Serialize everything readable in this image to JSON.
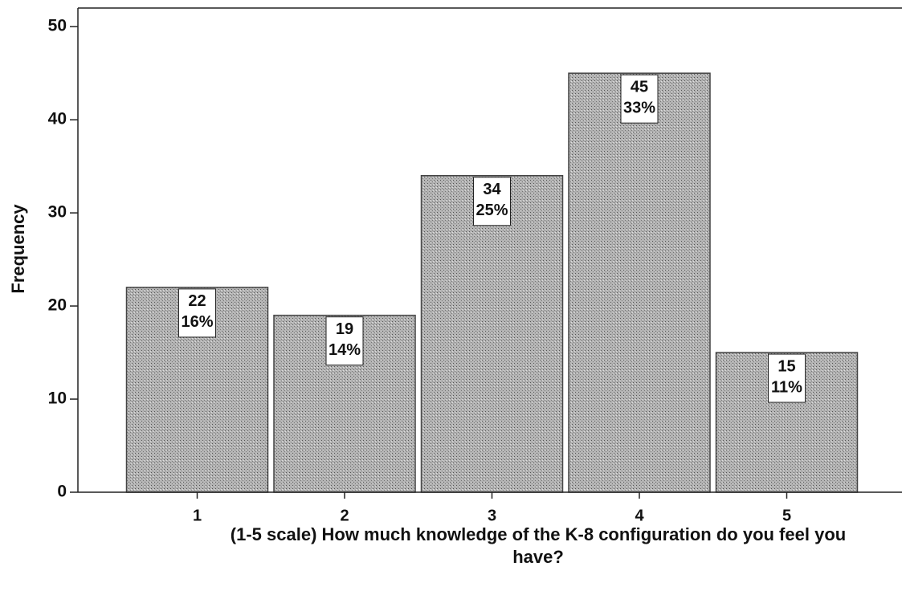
{
  "chart_data": {
    "type": "bar",
    "xlabel": "(1-5 scale) How much knowledge of the K-8 configuration do you feel you have?",
    "ylabel": "Frequency",
    "categories": [
      "1",
      "2",
      "3",
      "4",
      "5"
    ],
    "values": [
      22,
      19,
      34,
      45,
      15
    ],
    "percents": [
      16,
      14,
      25,
      33,
      11
    ],
    "percent_labels": [
      "16%",
      "14%",
      "25%",
      "33%",
      "11%"
    ],
    "color": "#a9a9a9",
    "ylim": [
      0,
      52
    ],
    "yticks": [
      0,
      10,
      20,
      30,
      40,
      50
    ]
  }
}
